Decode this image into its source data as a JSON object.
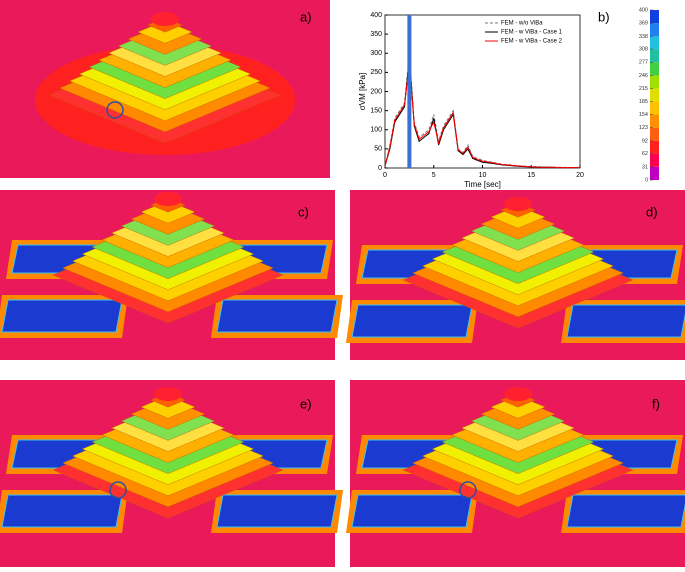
{
  "panels": [
    {
      "label": "a)"
    },
    {
      "label": "b)"
    },
    {
      "label": "c)"
    },
    {
      "label": "d)"
    },
    {
      "label": "e)"
    },
    {
      "label": "f)"
    }
  ],
  "chart_data": [
    {
      "type": "line",
      "xlabel": "Time [sec]",
      "ylabel": "σVM [kPa]",
      "x": [
        0,
        0.5,
        1,
        1.5,
        2,
        2.5,
        3,
        3.5,
        4,
        4.5,
        5,
        5.5,
        6,
        6.5,
        7,
        7.5,
        8,
        8.5,
        9,
        9.5,
        10,
        11,
        12,
        13,
        14,
        15,
        16,
        17,
        18,
        19,
        20
      ],
      "series": [
        {
          "name": "FEM - w/o ViBa",
          "color": "#777777",
          "dash": true,
          "values": [
            5,
            60,
            130,
            150,
            170,
            300,
            120,
            80,
            90,
            100,
            140,
            70,
            110,
            130,
            150,
            50,
            40,
            60,
            30,
            25,
            20,
            15,
            10,
            8,
            5,
            4,
            3,
            2,
            2,
            1,
            1
          ]
        },
        {
          "name": "FEM - w ViBa - Case 1",
          "color": "#000000",
          "dash": false,
          "values": [
            5,
            50,
            120,
            140,
            160,
            290,
            110,
            70,
            80,
            90,
            130,
            60,
            100,
            120,
            140,
            45,
            35,
            50,
            25,
            20,
            15,
            12,
            8,
            6,
            4,
            3,
            2,
            2,
            1,
            1,
            1
          ]
        },
        {
          "name": "FEM - w ViBa - Case 2",
          "color": "#ff0000",
          "dash": false,
          "values": [
            5,
            55,
            125,
            145,
            165,
            270,
            115,
            75,
            85,
            95,
            120,
            65,
            105,
            125,
            145,
            48,
            38,
            55,
            28,
            22,
            18,
            14,
            9,
            7,
            5,
            3,
            2,
            2,
            1,
            1,
            1
          ]
        }
      ],
      "vline": {
        "x": 2.5,
        "color": "#3a6fd8"
      },
      "xlim": [
        0,
        20
      ],
      "xticks": [
        0,
        5,
        10,
        15,
        20
      ],
      "ylim": [
        0,
        400
      ],
      "yticks": [
        0,
        50,
        100,
        150,
        200,
        250,
        300,
        350,
        400
      ],
      "legend": "upper-right"
    },
    {
      "type": "colorbar",
      "ticks": [
        0,
        31,
        62,
        92,
        123,
        154,
        185,
        215,
        246,
        277,
        308,
        338,
        369,
        400
      ],
      "colors": [
        "#c000c0",
        "#ff0050",
        "#ff2020",
        "#ff6010",
        "#ff9000",
        "#ffc000",
        "#e0e000",
        "#a0e000",
        "#40d040",
        "#20c0a0",
        "#20c0e0",
        "#2080f0",
        "#1040e0"
      ]
    }
  ]
}
